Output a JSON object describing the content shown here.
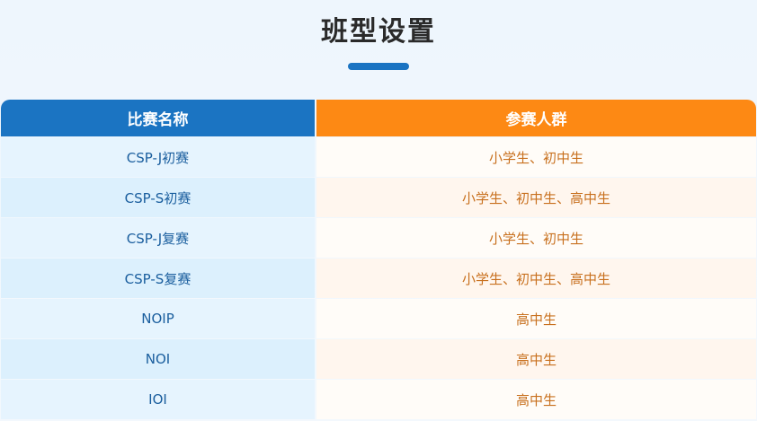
{
  "title": "班型设置",
  "colors": {
    "blue": "#1b74c2",
    "orange": "#fd8914"
  },
  "table": {
    "headers": [
      "比赛名称",
      "参赛人群"
    ],
    "rows": [
      [
        "CSP-J初赛",
        "小学生、初中生"
      ],
      [
        "CSP-S初赛",
        "小学生、初中生、高中生"
      ],
      [
        "CSP-J复赛",
        "小学生、初中生"
      ],
      [
        "CSP-S复赛",
        "小学生、初中生、高中生"
      ],
      [
        "NOIP",
        "高中生"
      ],
      [
        "NOI",
        "高中生"
      ],
      [
        "IOI",
        "高中生"
      ]
    ]
  }
}
